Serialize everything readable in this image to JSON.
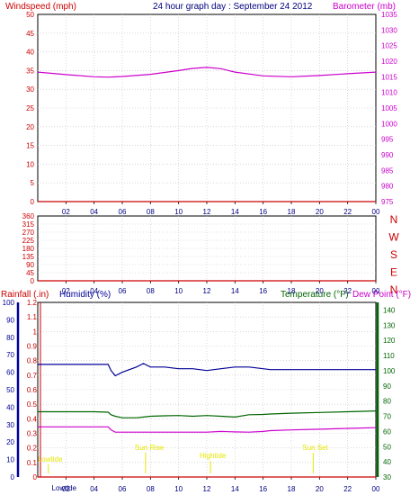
{
  "header": {
    "left_label": "Windspeed (mph)",
    "title": "24 hour graph day : September 24 2012",
    "right_label": "Barometer (mb)"
  },
  "x_ticks": [
    "02",
    "04",
    "06",
    "08",
    "10",
    "12",
    "14",
    "16",
    "18",
    "20",
    "22",
    "00"
  ],
  "wind_panel": {
    "y_left_ticks": [
      "0",
      "5",
      "10",
      "15",
      "20",
      "25",
      "30",
      "35",
      "40",
      "45",
      "50"
    ],
    "y_right_ticks": [
      "975",
      "980",
      "985",
      "990",
      "995",
      "1000",
      "1005",
      "1010",
      "1015",
      "1020",
      "1025",
      "1030",
      "1035"
    ]
  },
  "direction_panel": {
    "y_ticks": [
      "0",
      "45",
      "90",
      "135",
      "180",
      "225",
      "270",
      "315",
      "360"
    ],
    "compass": [
      "N",
      "W",
      "S",
      "E",
      "N"
    ]
  },
  "bottom_panel": {
    "rainfall_label": "Rainfall (.in)",
    "humidity_label": "Humidity (%)",
    "temperature_label": "Temperature (°F)",
    "dewpoint_label": "Dew Point (°F)",
    "rain_ticks": [
      "0",
      "0.1",
      "0.2",
      "0.3",
      "0.4",
      "0.5",
      "0.6",
      "0.7",
      "0.8",
      "0.9",
      "1",
      "1.1",
      "1.2"
    ],
    "humidity_ticks": [
      "0",
      "10",
      "20",
      "30",
      "40",
      "50",
      "60",
      "70",
      "80",
      "90",
      "100"
    ],
    "temp_ticks": [
      "30",
      "40",
      "50",
      "60",
      "70",
      "80",
      "90",
      "100",
      "110",
      "120",
      "130",
      "140"
    ],
    "annotations": {
      "lowtide_1": "Lowtide",
      "sunrise": "Sun Rise",
      "hightide": "Hightide",
      "sunset": "Sun Set",
      "lowtide_2": "Lowtide"
    }
  },
  "colors": {
    "wind": "#cc0000",
    "barometer": "#cc00cc",
    "title": "#000080",
    "direction": "#cc0000",
    "humidity": "#000099",
    "temperature": "#006600",
    "dewpoint": "#cc00cc",
    "rain": "#cc0000",
    "annotation": "#e6e600",
    "grid": "#c0c0c0"
  },
  "chart_data": [
    {
      "type": "line",
      "panel": "wind_barometer",
      "x": [
        0,
        2,
        4,
        5,
        6,
        8,
        10,
        11,
        12,
        13,
        14,
        16,
        18,
        20,
        22,
        24
      ],
      "series": [
        {
          "name": "Windspeed (mph)",
          "axis": "left",
          "values": [
            0,
            0,
            0,
            0,
            0,
            0,
            0,
            0,
            0,
            0,
            0,
            0,
            0,
            0,
            0,
            0
          ]
        },
        {
          "name": "Barometer (mb)",
          "axis": "right",
          "values": [
            1016.5,
            1015.7,
            1015.0,
            1014.9,
            1015.1,
            1015.8,
            1017.0,
            1017.7,
            1018.0,
            1017.6,
            1016.5,
            1015.3,
            1015.0,
            1015.4,
            1016.0,
            1016.5
          ]
        }
      ],
      "ylim_left": [
        0,
        50
      ],
      "ylim_right": [
        975,
        1035
      ],
      "xlim": [
        0,
        24
      ]
    },
    {
      "type": "line",
      "panel": "wind_direction",
      "x": [
        0,
        24
      ],
      "series": [
        {
          "name": "Wind direction",
          "values": [
            0,
            0
          ]
        }
      ],
      "ylim": [
        0,
        360
      ],
      "xlim": [
        0,
        24
      ]
    },
    {
      "type": "line",
      "panel": "rain_humidity_temp",
      "x": [
        0,
        2,
        4,
        5,
        5.2,
        5.5,
        6,
        7,
        7.5,
        8,
        9,
        10,
        11,
        12,
        13,
        14,
        15,
        16,
        16.5,
        18,
        20,
        22,
        24
      ],
      "series": [
        {
          "name": "Humidity (%)",
          "axis": "humidity",
          "values": [
            64.5,
            64.5,
            64.5,
            64.5,
            61,
            58,
            60,
            63,
            65,
            63,
            63,
            62,
            62,
            61,
            62,
            63,
            63,
            62,
            61.5,
            61.5,
            61.5,
            61.5,
            61.5
          ]
        },
        {
          "name": "Temperature (°F)",
          "axis": "temp",
          "values": [
            73,
            73,
            73,
            72.7,
            71,
            70,
            69,
            69,
            69.5,
            70,
            70.3,
            70.5,
            70,
            70.5,
            70,
            69.5,
            71,
            71.2,
            71.5,
            72,
            72.5,
            73,
            73.5
          ]
        },
        {
          "name": "Dew Point (°F)",
          "axis": "temp",
          "values": [
            63,
            63,
            63,
            63,
            61,
            59.5,
            59.5,
            59.5,
            59.5,
            59.5,
            59.5,
            59.5,
            59.5,
            59.5,
            60,
            59.7,
            59.5,
            60,
            60.5,
            61,
            61.5,
            62,
            62.5
          ]
        },
        {
          "name": "Rainfall (.in)",
          "axis": "rain",
          "values": [
            0,
            0,
            0,
            0,
            0,
            0,
            0,
            0,
            0,
            0,
            0,
            0,
            0,
            0,
            0,
            0,
            0,
            0,
            0,
            0,
            0,
            0,
            0
          ]
        }
      ],
      "ylim_rain": [
        0,
        1.2
      ],
      "ylim_humidity": [
        0,
        100
      ],
      "ylim_temp": [
        30,
        145
      ],
      "xlim": [
        0,
        24
      ],
      "events": [
        {
          "label": "Lowtide",
          "x": 0.5
        },
        {
          "label": "Sun Rise",
          "x": 7.4
        },
        {
          "label": "Hightide",
          "x": 12.0
        },
        {
          "label": "Sun Set",
          "x": 19.3
        },
        {
          "label": "Lowtide",
          "x": 1.5
        }
      ]
    }
  ]
}
